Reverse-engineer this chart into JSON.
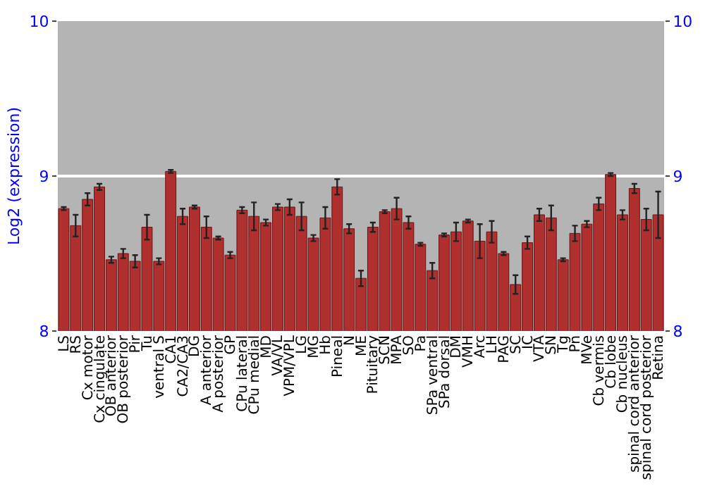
{
  "chart_data": {
    "type": "bar",
    "ylabel": "Log2 (expression)",
    "categories": [
      "LS",
      "RS",
      "Cx motor",
      "Cx cingulate",
      "OB anterior",
      "OB posterior",
      "Pir",
      "Tu",
      "ventral S",
      "CA1",
      "CA2/CA3",
      "DG",
      "A anterior",
      "A posterior",
      "GP",
      "CPu lateral",
      "CPu medial",
      "MD",
      "VA/VL",
      "VPM/VPL",
      "LG",
      "MG",
      "Hb",
      "Pineal",
      "N",
      "ME",
      "Pituitary",
      "SCN",
      "MPA",
      "SO",
      "Pa",
      "SPa ventral",
      "SPa dorsal",
      "DM",
      "VMH",
      "Arc",
      "LH",
      "PAG",
      "SC",
      "IC",
      "VTA",
      "SN",
      "Tg",
      "Pn",
      "MVe",
      "Cb vermis",
      "Cb lobe",
      "Cb nucleus",
      "spinal cord anterior",
      "spinal cord posterior",
      "Retina"
    ],
    "values": [
      8.79,
      8.68,
      8.85,
      8.93,
      8.46,
      8.5,
      8.45,
      8.67,
      8.45,
      9.03,
      8.74,
      8.8,
      8.67,
      8.6,
      8.49,
      8.78,
      8.74,
      8.7,
      8.8,
      8.8,
      8.74,
      8.6,
      8.73,
      8.93,
      8.66,
      8.34,
      8.67,
      8.77,
      8.79,
      8.7,
      8.56,
      8.39,
      8.62,
      8.64,
      8.71,
      8.58,
      8.64,
      8.5,
      8.3,
      8.57,
      8.75,
      8.73,
      8.46,
      8.63,
      8.69,
      8.82,
      9.01,
      8.75,
      8.92,
      8.72,
      8.75
    ],
    "errors": [
      0.01,
      0.07,
      0.04,
      0.02,
      0.02,
      0.03,
      0.04,
      0.08,
      0.02,
      0.01,
      0.05,
      0.01,
      0.07,
      0.01,
      0.02,
      0.02,
      0.09,
      0.02,
      0.02,
      0.05,
      0.09,
      0.02,
      0.07,
      0.05,
      0.03,
      0.05,
      0.03,
      0.01,
      0.07,
      0.04,
      0.01,
      0.05,
      0.01,
      0.06,
      0.01,
      0.11,
      0.07,
      0.01,
      0.06,
      0.04,
      0.04,
      0.08,
      0.01,
      0.05,
      0.02,
      0.04,
      0.01,
      0.03,
      0.03,
      0.07,
      0.15
    ],
    "color": "#b03030",
    "ylim": [
      8,
      10
    ],
    "yticks": [
      8,
      9,
      10
    ],
    "y2lim": [
      8,
      10
    ],
    "y2ticks": [
      8,
      9,
      10
    ],
    "grid": "y",
    "legend": false
  }
}
